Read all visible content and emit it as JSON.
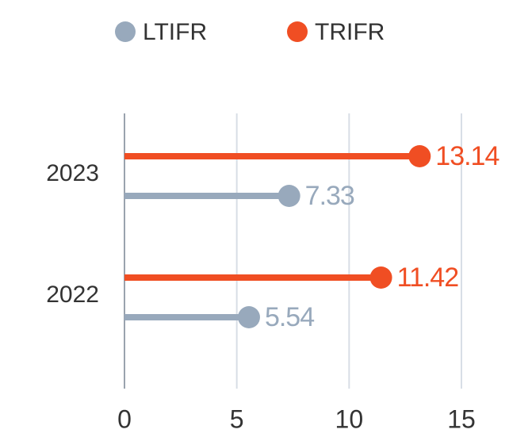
{
  "chart_data": {
    "type": "lollipop",
    "categories": [
      "2023",
      "2022"
    ],
    "series": [
      {
        "name": "TRIFR",
        "color": "#f04e23",
        "values": [
          13.14,
          11.42
        ]
      },
      {
        "name": "LTIFR",
        "color": "#98a9bc",
        "values": [
          7.33,
          5.54
        ]
      }
    ],
    "xlim": [
      0,
      15
    ],
    "xticks": [
      0,
      5,
      10,
      15
    ],
    "grid": true,
    "legend": "top"
  }
}
